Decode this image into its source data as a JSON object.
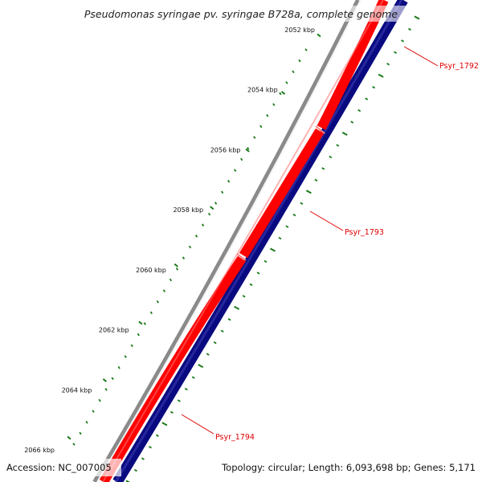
{
  "title": "Pseudomonas syringae pv. syringae B728a, complete genome",
  "ticks": [
    {
      "label": "2052 kbp",
      "major": true
    },
    {
      "label": "2054 kbp",
      "major": true
    },
    {
      "label": "2056 kbp",
      "major": true
    },
    {
      "label": "2058 kbp",
      "major": true
    },
    {
      "label": "2060 kbp",
      "major": true
    },
    {
      "label": "2062 kbp",
      "major": true
    },
    {
      "label": "2064 kbp",
      "major": true
    },
    {
      "label": "2066 kbp",
      "major": true
    }
  ],
  "genes": [
    {
      "name": "Psyr_1792",
      "strand": "forward"
    },
    {
      "name": "Psyr_1793",
      "strand": "forward"
    },
    {
      "name": "Psyr_1794",
      "strand": "forward"
    }
  ],
  "footer": {
    "accession": "Accession: NC_007005",
    "summary": "Topology: circular; Length: 6,093,698 bp; Genes: 5,171"
  },
  "colors": {
    "backbone": "#8a8a8a",
    "forward_cds": "#ff0000",
    "reverse_cds": "#0a0a80",
    "ticks": "#1a7a1a",
    "gene_label": "#e00000"
  }
}
